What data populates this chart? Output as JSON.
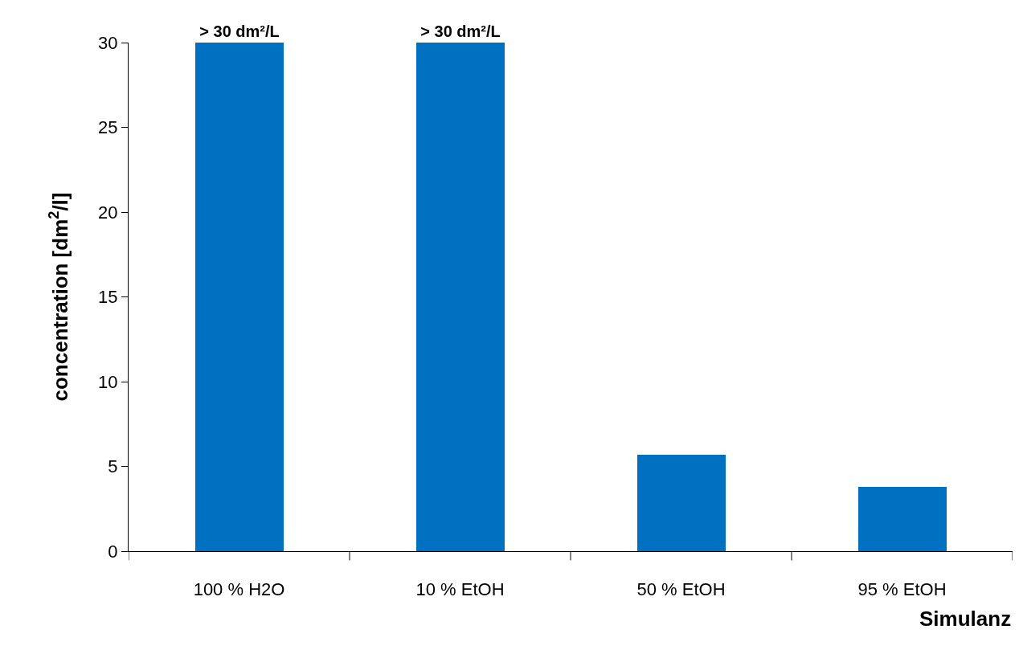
{
  "chart_data": {
    "type": "bar",
    "xlabel": "Simulanz",
    "ylabel": "concentration [dm$^{2}$/l]",
    "categories": [
      "100 % H2O",
      "10 % EtOH",
      "50 % EtOH",
      "95 % EtOH"
    ],
    "values": [
      30,
      30,
      5.7,
      3.8
    ],
    "value_labels": [
      "> 30 dm²/L",
      "> 30 dm²/L",
      null,
      null
    ],
    "color": "#0070c0",
    "ylim": [
      0,
      30
    ],
    "yticks": [
      0,
      5,
      10,
      15,
      20,
      25,
      30
    ],
    "grid": false
  }
}
